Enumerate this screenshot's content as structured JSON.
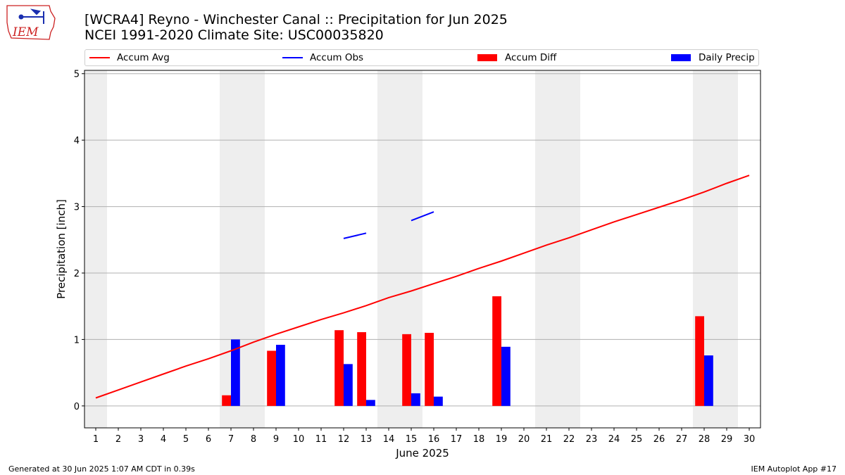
{
  "logo": {
    "text": "IEM",
    "color": "#cc2222"
  },
  "header": {
    "title_line1": "[WCRA4] Reyno - Winchester Canal :: Precipitation for Jun 2025",
    "title_line2": "NCEI 1991-2020 Climate Site: USC00035820"
  },
  "footer": {
    "generated": "Generated at 30 Jun 2025 1:07 AM CDT in 0.39s",
    "app": "IEM Autoplot App #17"
  },
  "chart_data": {
    "type": "bar",
    "xlabel": "June 2025",
    "ylabel": "Precipitation [inch]",
    "xlim": [
      0.5,
      30.5
    ],
    "ylim": [
      -0.33,
      5.05
    ],
    "yticks": [
      0,
      1,
      2,
      3,
      4,
      5
    ],
    "grid": "horizontal",
    "legend_position": "top",
    "weekend_shading": [
      [
        0.5,
        1.5
      ],
      [
        6.5,
        8.5
      ],
      [
        13.5,
        15.5
      ],
      [
        20.5,
        22.5
      ],
      [
        27.5,
        29.5
      ]
    ],
    "days": [
      1,
      2,
      3,
      4,
      5,
      6,
      7,
      8,
      9,
      10,
      11,
      12,
      13,
      14,
      15,
      16,
      17,
      18,
      19,
      20,
      21,
      22,
      23,
      24,
      25,
      26,
      27,
      28,
      29,
      30
    ],
    "series": [
      {
        "name": "Accum Avg",
        "kind": "line",
        "color": "#ff0000",
        "values": [
          0.12,
          0.24,
          0.36,
          0.48,
          0.6,
          0.71,
          0.83,
          0.96,
          1.08,
          1.19,
          1.3,
          1.4,
          1.51,
          1.63,
          1.73,
          1.84,
          1.95,
          2.07,
          2.18,
          2.3,
          2.42,
          2.53,
          2.65,
          2.77,
          2.88,
          2.99,
          3.1,
          3.22,
          3.35,
          3.47
        ]
      },
      {
        "name": "Accum Obs",
        "kind": "line",
        "color": "#0000ff",
        "values": [
          null,
          null,
          null,
          null,
          null,
          null,
          null,
          null,
          null,
          null,
          null,
          2.52,
          2.6,
          null,
          2.79,
          2.92,
          null,
          null,
          null,
          null,
          null,
          null,
          null,
          null,
          null,
          null,
          null,
          null,
          null,
          null
        ]
      },
      {
        "name": "Accum Diff",
        "kind": "bar",
        "color": "#ff0000",
        "values": [
          0,
          0,
          0,
          0,
          0,
          0,
          0.16,
          0,
          0.83,
          0,
          0,
          1.14,
          1.11,
          0,
          1.08,
          1.1,
          0,
          0,
          1.65,
          0,
          0,
          0,
          0,
          0,
          0,
          0,
          0,
          1.35,
          0,
          0
        ]
      },
      {
        "name": "Daily Precip",
        "kind": "bar",
        "color": "#0000ff",
        "values": [
          0,
          0,
          0,
          0,
          0,
          0,
          1.0,
          0,
          0.92,
          0,
          0,
          0.63,
          0.09,
          0,
          0.19,
          0.14,
          0,
          0,
          0.89,
          0,
          0,
          0,
          0,
          0,
          0,
          0,
          0,
          0.76,
          0,
          0
        ]
      }
    ]
  }
}
